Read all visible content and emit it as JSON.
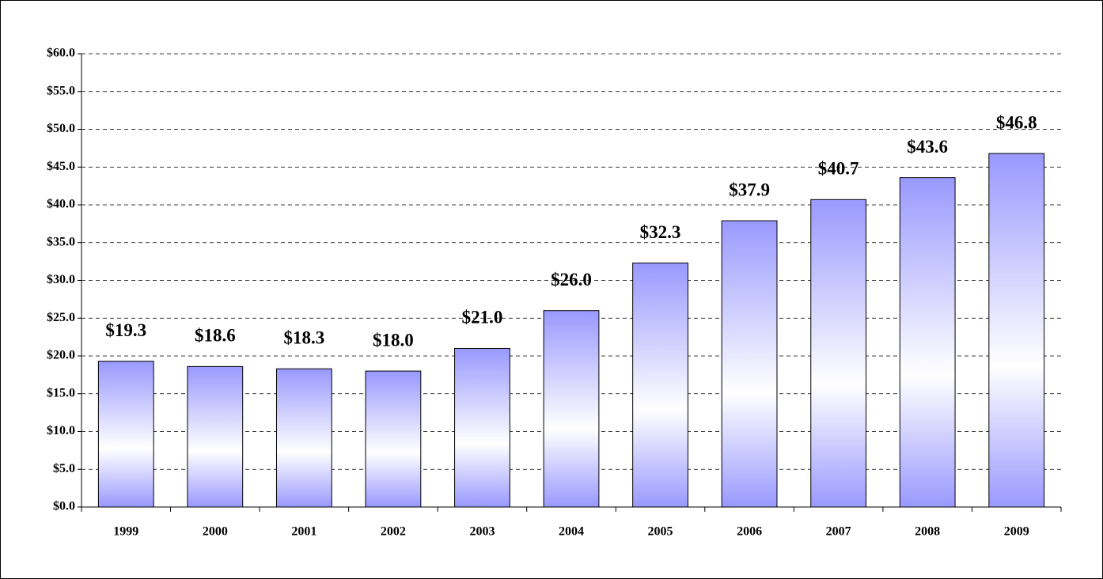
{
  "chart_data": {
    "type": "bar",
    "categories": [
      "1999",
      "2000",
      "2001",
      "2002",
      "2003",
      "2004",
      "2005",
      "2006",
      "2007",
      "2008",
      "2009"
    ],
    "values": [
      19.3,
      18.6,
      18.3,
      18.0,
      21.0,
      26.0,
      32.3,
      37.9,
      40.7,
      43.6,
      46.8
    ],
    "value_labels": [
      "$19.3",
      "$18.6",
      "$18.3",
      "$18.0",
      "$21.0",
      "$26.0",
      "$32.3",
      "$37.9",
      "$40.7",
      "$43.6",
      "$46.8"
    ],
    "color": "#9999ff",
    "ylim": [
      0,
      60
    ],
    "yticks": [
      {
        "value": 0,
        "label": "$0.0"
      },
      {
        "value": 5,
        "label": "$5.0"
      },
      {
        "value": 10,
        "label": "$10.0"
      },
      {
        "value": 15,
        "label": "$15.0"
      },
      {
        "value": 20,
        "label": "$20.0"
      },
      {
        "value": 25,
        "label": "$25.0"
      },
      {
        "value": 30,
        "label": "$30.0"
      },
      {
        "value": 35,
        "label": "$35.0"
      },
      {
        "value": 40,
        "label": "$40.0"
      },
      {
        "value": 45,
        "label": "$45.0"
      },
      {
        "value": 50,
        "label": "$50.0"
      },
      {
        "value": 55,
        "label": "$55.0"
      },
      {
        "value": 60,
        "label": "$60.0"
      }
    ],
    "grid": true
  }
}
